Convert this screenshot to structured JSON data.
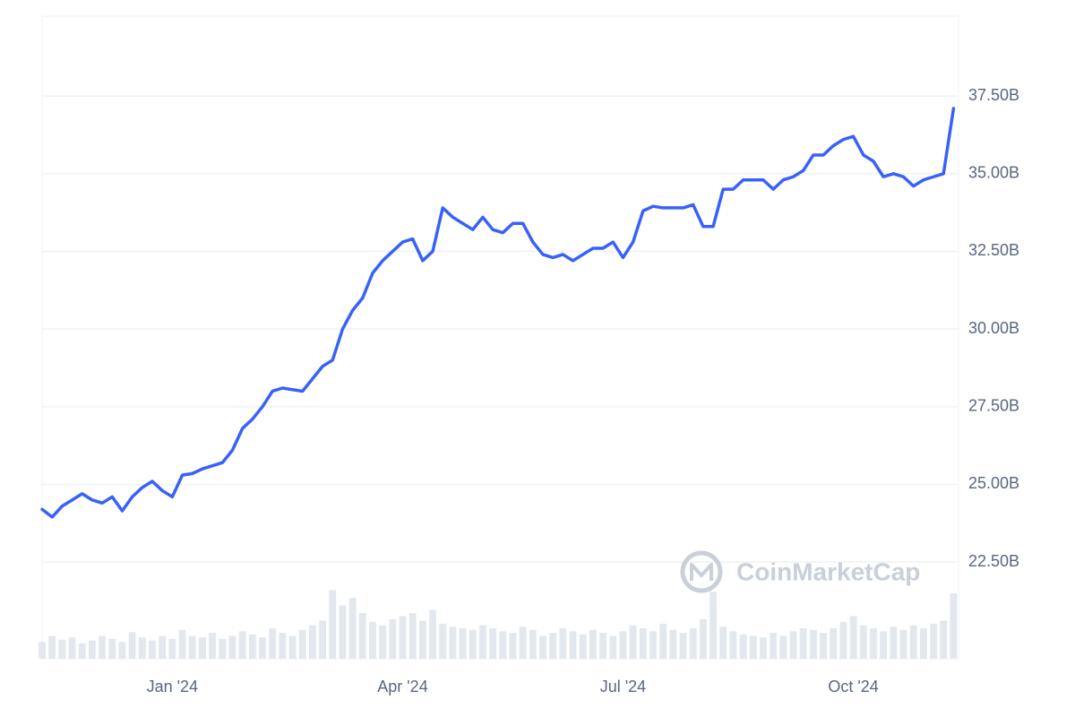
{
  "chart_data": {
    "type": "line",
    "watermark": "CoinMarketCap",
    "categories": [
      null,
      null,
      null,
      null,
      null,
      null,
      null,
      null,
      null,
      null,
      null,
      null,
      null,
      "Jan '24",
      null,
      null,
      null,
      null,
      null,
      null,
      null,
      null,
      null,
      null,
      null,
      null,
      null,
      null,
      null,
      null,
      null,
      null,
      null,
      null,
      null,
      null,
      "Apr '24",
      null,
      null,
      null,
      null,
      null,
      null,
      null,
      null,
      null,
      null,
      null,
      null,
      null,
      null,
      null,
      null,
      null,
      null,
      null,
      null,
      null,
      "Jul '24",
      null,
      null,
      null,
      null,
      null,
      null,
      null,
      null,
      null,
      null,
      null,
      null,
      null,
      null,
      null,
      null,
      null,
      null,
      null,
      null,
      null,
      null,
      "Oct '24",
      null,
      null,
      null,
      null,
      null,
      null,
      null,
      null,
      null,
      null
    ],
    "series": [
      {
        "color": "#3861fb",
        "values": [
          24.2,
          23.95,
          24.3,
          24.5,
          24.7,
          24.5,
          24.4,
          24.6,
          24.15,
          24.6,
          24.9,
          25.1,
          24.8,
          24.6,
          25.3,
          25.35,
          25.5,
          25.6,
          25.7,
          26.1,
          26.8,
          27.1,
          27.5,
          28.0,
          28.1,
          28.05,
          28.0,
          28.4,
          28.8,
          29.0,
          30.0,
          30.6,
          31.0,
          31.8,
          32.2,
          32.5,
          32.8,
          32.9,
          32.2,
          32.5,
          33.9,
          33.6,
          33.4,
          33.2,
          33.6,
          33.2,
          33.1,
          33.4,
          33.4,
          32.8,
          32.4,
          32.3,
          32.4,
          32.2,
          32.4,
          32.6,
          32.6,
          32.8,
          32.3,
          32.8,
          33.8,
          33.95,
          33.9,
          33.9,
          33.9,
          34.0,
          33.3,
          33.3,
          34.5,
          34.5,
          34.8,
          34.8,
          34.8,
          34.5,
          34.8,
          34.9,
          35.1,
          35.6,
          35.6,
          35.9,
          36.1,
          36.2,
          35.6,
          35.4,
          34.9,
          35.0,
          34.9,
          34.6,
          34.8,
          34.9,
          35.0,
          37.1
        ]
      }
    ],
    "volume": {
      "color": "#e3e8ee",
      "ylim": [
        0,
        100
      ],
      "values": [
        22,
        30,
        25,
        28,
        20,
        24,
        30,
        26,
        22,
        35,
        28,
        24,
        30,
        26,
        38,
        30,
        28,
        34,
        26,
        30,
        36,
        32,
        28,
        40,
        34,
        30,
        38,
        44,
        50,
        90,
        70,
        80,
        60,
        48,
        44,
        52,
        56,
        60,
        50,
        64,
        46,
        42,
        40,
        38,
        44,
        40,
        36,
        34,
        42,
        38,
        30,
        34,
        40,
        36,
        32,
        38,
        34,
        30,
        36,
        44,
        40,
        36,
        46,
        38,
        34,
        40,
        52,
        88,
        42,
        36,
        32,
        30,
        28,
        34,
        30,
        36,
        40,
        38,
        34,
        40,
        48,
        56,
        44,
        40,
        36,
        42,
        38,
        44,
        40,
        46,
        50,
        86
      ]
    },
    "ylim": [
      19.39,
      40.07
    ],
    "yticks": [
      {
        "value": 22.5,
        "label": "22.50B"
      },
      {
        "value": 25,
        "label": "25.00B"
      },
      {
        "value": 27.5,
        "label": "27.50B"
      },
      {
        "value": 30,
        "label": "30.00B"
      },
      {
        "value": 32.5,
        "label": "32.50B"
      },
      {
        "value": 35,
        "label": "35.00B"
      },
      {
        "value": 37.5,
        "label": "37.50B"
      }
    ],
    "grid": true
  }
}
